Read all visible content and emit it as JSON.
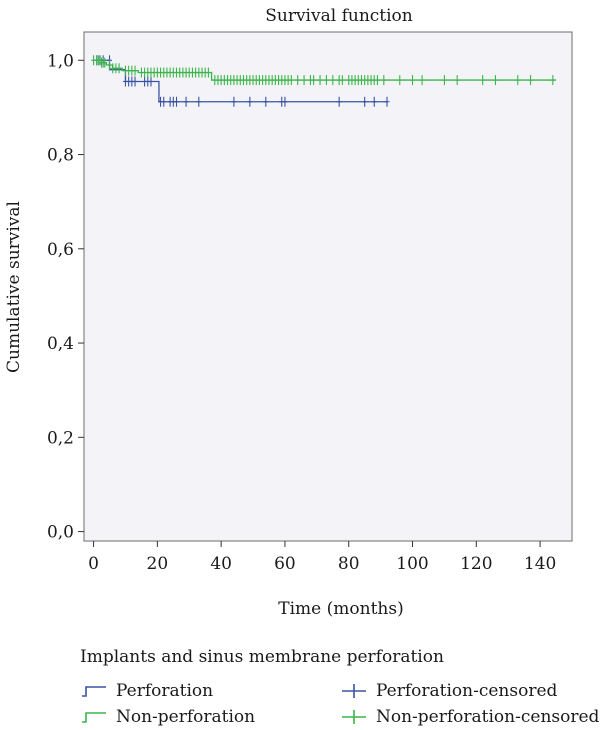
{
  "chart_data": {
    "type": "line",
    "title": "Survival function",
    "xlabel": "Time (months)",
    "ylabel": "Cumulative survival",
    "xlim": [
      -3,
      150
    ],
    "ylim": [
      -0.02,
      1.06
    ],
    "xticks": [
      0,
      20,
      40,
      60,
      80,
      100,
      120,
      140
    ],
    "yticks": [
      0.0,
      0.2,
      0.4,
      0.6,
      0.8,
      1.0
    ],
    "xtick_labels": [
      "0",
      "20",
      "40",
      "60",
      "80",
      "100",
      "120",
      "140"
    ],
    "ytick_labels": [
      "0,0",
      "0,2",
      "0,4",
      "0,6",
      "0,8",
      "1,0"
    ],
    "grid": false,
    "legend_placement": "bottom",
    "legend_title": "Implants and sinus membrane perforation",
    "series": [
      {
        "name": "Perforation",
        "color": "#3a53a4",
        "steps": [
          [
            0,
            1.0
          ],
          [
            5,
            0.98
          ],
          [
            10,
            0.955
          ],
          [
            20.5,
            0.912
          ],
          [
            92,
            0.912
          ]
        ],
        "censored_name": "Perforation-censored",
        "censored": [
          [
            1,
            1.0
          ],
          [
            2,
            1.0
          ],
          [
            3,
            1.0
          ],
          [
            5,
            1.0
          ],
          [
            10,
            0.955
          ],
          [
            11,
            0.955
          ],
          [
            12,
            0.955
          ],
          [
            13,
            0.955
          ],
          [
            16,
            0.955
          ],
          [
            17,
            0.955
          ],
          [
            18,
            0.955
          ],
          [
            21,
            0.912
          ],
          [
            22,
            0.912
          ],
          [
            24,
            0.912
          ],
          [
            25,
            0.912
          ],
          [
            26,
            0.912
          ],
          [
            29,
            0.912
          ],
          [
            33,
            0.912
          ],
          [
            44,
            0.912
          ],
          [
            49,
            0.912
          ],
          [
            54,
            0.912
          ],
          [
            59,
            0.912
          ],
          [
            60,
            0.912
          ],
          [
            77,
            0.912
          ],
          [
            85,
            0.912
          ],
          [
            88,
            0.912
          ],
          [
            92,
            0.912
          ]
        ]
      },
      {
        "name": "Non-perforation",
        "color": "#3bb54a",
        "steps": [
          [
            0,
            1.0
          ],
          [
            2,
            0.995
          ],
          [
            4,
            0.99
          ],
          [
            6,
            0.983
          ],
          [
            9,
            0.978
          ],
          [
            14,
            0.974
          ],
          [
            37,
            0.958
          ],
          [
            145,
            0.958
          ]
        ],
        "censored_name": "Non-perforation-censored",
        "censored": [
          [
            0,
            1.0
          ],
          [
            1,
            1.0
          ],
          [
            1.5,
            1.0
          ],
          [
            2.5,
            0.995
          ],
          [
            3,
            0.995
          ],
          [
            3.5,
            0.995
          ],
          [
            5,
            0.99
          ],
          [
            6,
            0.983
          ],
          [
            7,
            0.983
          ],
          [
            8,
            0.983
          ],
          [
            10,
            0.978
          ],
          [
            11,
            0.978
          ],
          [
            12,
            0.978
          ],
          [
            13,
            0.978
          ],
          [
            15,
            0.974
          ],
          [
            16,
            0.974
          ],
          [
            17,
            0.974
          ],
          [
            18,
            0.974
          ],
          [
            19,
            0.974
          ],
          [
            20,
            0.974
          ],
          [
            21,
            0.974
          ],
          [
            22,
            0.974
          ],
          [
            23,
            0.974
          ],
          [
            24,
            0.974
          ],
          [
            25,
            0.974
          ],
          [
            26,
            0.974
          ],
          [
            27,
            0.974
          ],
          [
            28,
            0.974
          ],
          [
            29,
            0.974
          ],
          [
            30,
            0.974
          ],
          [
            31,
            0.974
          ],
          [
            32,
            0.974
          ],
          [
            33,
            0.974
          ],
          [
            34,
            0.974
          ],
          [
            35,
            0.974
          ],
          [
            36,
            0.974
          ],
          [
            38,
            0.958
          ],
          [
            39,
            0.958
          ],
          [
            40,
            0.958
          ],
          [
            41,
            0.958
          ],
          [
            42,
            0.958
          ],
          [
            43,
            0.958
          ],
          [
            44,
            0.958
          ],
          [
            45,
            0.958
          ],
          [
            46,
            0.958
          ],
          [
            47,
            0.958
          ],
          [
            48,
            0.958
          ],
          [
            49,
            0.958
          ],
          [
            50,
            0.958
          ],
          [
            51,
            0.958
          ],
          [
            52,
            0.958
          ],
          [
            53,
            0.958
          ],
          [
            54,
            0.958
          ],
          [
            55,
            0.958
          ],
          [
            56,
            0.958
          ],
          [
            57,
            0.958
          ],
          [
            58,
            0.958
          ],
          [
            59,
            0.958
          ],
          [
            60,
            0.958
          ],
          [
            61,
            0.958
          ],
          [
            62,
            0.958
          ],
          [
            64,
            0.958
          ],
          [
            66,
            0.958
          ],
          [
            68,
            0.958
          ],
          [
            69,
            0.958
          ],
          [
            71,
            0.958
          ],
          [
            73,
            0.958
          ],
          [
            75,
            0.958
          ],
          [
            77,
            0.958
          ],
          [
            78,
            0.958
          ],
          [
            80,
            0.958
          ],
          [
            81,
            0.958
          ],
          [
            82,
            0.958
          ],
          [
            83,
            0.958
          ],
          [
            84,
            0.958
          ],
          [
            85,
            0.958
          ],
          [
            86,
            0.958
          ],
          [
            87,
            0.958
          ],
          [
            88,
            0.958
          ],
          [
            89,
            0.958
          ],
          [
            91,
            0.958
          ],
          [
            96,
            0.958
          ],
          [
            100,
            0.958
          ],
          [
            103,
            0.958
          ],
          [
            110,
            0.958
          ],
          [
            114,
            0.958
          ],
          [
            122,
            0.958
          ],
          [
            126,
            0.958
          ],
          [
            133,
            0.958
          ],
          [
            137,
            0.958
          ],
          [
            144,
            0.958
          ]
        ]
      }
    ]
  }
}
